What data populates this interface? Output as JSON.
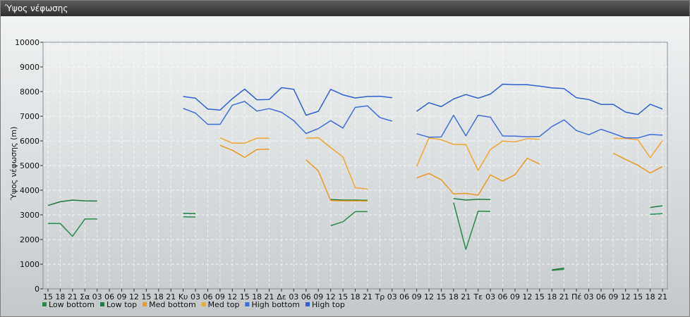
{
  "window": {
    "title": "Ύψος νέφωσης"
  },
  "chart_data": {
    "type": "line",
    "title": "",
    "xlabel": "",
    "ylabel": "Ύψος νέφωσης (m)",
    "ylim": [
      0,
      10000
    ],
    "yticks": [
      0,
      1000,
      2000,
      3000,
      4000,
      5000,
      6000,
      7000,
      8000,
      9000,
      10000
    ],
    "grid": true,
    "legend_position": "bottom-left",
    "x_labels": [
      "15",
      "18",
      "21",
      "Σα",
      "03",
      "06",
      "09",
      "12",
      "15",
      "18",
      "21",
      "Κυ",
      "03",
      "06",
      "09",
      "12",
      "15",
      "18",
      "21",
      "Δε",
      "03",
      "06",
      "09",
      "12",
      "15",
      "18",
      "21",
      "Τρ",
      "03",
      "06",
      "09",
      "12",
      "15",
      "18",
      "21",
      "Τε",
      "03",
      "06",
      "09",
      "12",
      "15",
      "18",
      "21",
      "Πέ",
      "03",
      "06",
      "09",
      "12",
      "15",
      "18",
      "21"
    ],
    "series": [
      {
        "name": "Low bottom",
        "color": "#2a8a4a",
        "values": [
          2650,
          2650,
          2130,
          2830,
          2830,
          null,
          null,
          null,
          null,
          null,
          null,
          2920,
          2910,
          null,
          null,
          null,
          null,
          null,
          null,
          null,
          null,
          null,
          null,
          2560,
          2720,
          3130,
          3130,
          null,
          null,
          null,
          null,
          null,
          null,
          3500,
          1600,
          3150,
          3140,
          null,
          null,
          null,
          null,
          750,
          790,
          null,
          null,
          null,
          null,
          null,
          null,
          3020,
          3050
        ]
      },
      {
        "name": "Low top",
        "color": "#1e7a40",
        "values": [
          3380,
          3530,
          3600,
          3570,
          3560,
          null,
          null,
          null,
          null,
          null,
          null,
          3060,
          3050,
          null,
          null,
          null,
          null,
          null,
          null,
          null,
          null,
          null,
          null,
          3620,
          3600,
          3600,
          3590,
          null,
          null,
          null,
          null,
          null,
          null,
          3660,
          3600,
          3630,
          3620,
          null,
          null,
          null,
          null,
          770,
          840,
          null,
          null,
          null,
          null,
          null,
          null,
          3300,
          3370
        ]
      },
      {
        "name": "Med bottom",
        "color": "#e89a28",
        "values": [
          null,
          null,
          null,
          null,
          null,
          null,
          null,
          null,
          null,
          null,
          null,
          null,
          null,
          null,
          5820,
          5620,
          5330,
          5650,
          5670,
          null,
          null,
          5230,
          4780,
          3580,
          3570,
          3570,
          3560,
          null,
          null,
          null,
          4500,
          4680,
          4420,
          3850,
          3870,
          3800,
          4620,
          4370,
          4630,
          5300,
          5060,
          null,
          null,
          null,
          null,
          null,
          5500,
          5250,
          5010,
          4700,
          4960
        ]
      },
      {
        "name": "Med top",
        "color": "#f0a838",
        "values": [
          null,
          null,
          null,
          null,
          null,
          null,
          null,
          null,
          null,
          null,
          null,
          null,
          null,
          null,
          6130,
          5910,
          5910,
          6110,
          6110,
          null,
          null,
          6110,
          6130,
          5730,
          5350,
          4100,
          4050,
          null,
          null,
          null,
          4970,
          6120,
          6050,
          5860,
          5850,
          4800,
          5650,
          5990,
          5960,
          6090,
          6060,
          null,
          null,
          null,
          null,
          null,
          6100,
          6100,
          6040,
          5320,
          6010
        ]
      },
      {
        "name": "High bottom",
        "color": "#3f6fd6",
        "values": [
          null,
          null,
          null,
          null,
          null,
          null,
          null,
          null,
          null,
          null,
          null,
          7320,
          7130,
          6670,
          6670,
          7450,
          7600,
          7210,
          7310,
          7160,
          6820,
          6300,
          6500,
          6820,
          6520,
          7360,
          7420,
          6950,
          6800,
          null,
          6290,
          6150,
          6160,
          7040,
          6210,
          7040,
          6960,
          6200,
          6190,
          6170,
          6180,
          6580,
          6850,
          6420,
          6250,
          6470,
          6300,
          6120,
          6120,
          6260,
          6230
        ]
      },
      {
        "name": "High top",
        "color": "#2f5fd0",
        "values": [
          null,
          null,
          null,
          null,
          null,
          null,
          null,
          null,
          null,
          null,
          null,
          7800,
          7730,
          7290,
          7250,
          7710,
          8100,
          7670,
          7680,
          8160,
          8090,
          7040,
          7200,
          8090,
          7870,
          7740,
          7800,
          7810,
          7750,
          null,
          7200,
          7550,
          7390,
          7700,
          7880,
          7730,
          7900,
          8300,
          8280,
          8280,
          8220,
          8150,
          8120,
          7750,
          7680,
          7480,
          7480,
          7170,
          7070,
          7490,
          7290
        ]
      }
    ]
  }
}
